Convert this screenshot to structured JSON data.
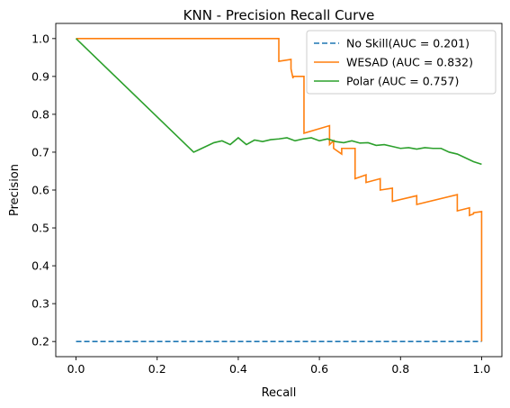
{
  "chart_data": {
    "type": "line",
    "title": "KNN - Precision Recall Curve",
    "xlabel": "Recall",
    "ylabel": "Precision",
    "xlim": [
      -0.05,
      1.05
    ],
    "ylim": [
      0.16,
      1.04
    ],
    "xticks": [
      "0.0",
      "0.2",
      "0.4",
      "0.6",
      "0.8",
      "1.0"
    ],
    "yticks": [
      "0.2",
      "0.3",
      "0.4",
      "0.5",
      "0.6",
      "0.7",
      "0.8",
      "0.9",
      "1.0"
    ],
    "legend_position": "top-right",
    "grid": false,
    "series": [
      {
        "name": "No Skill(AUC = 0.201)",
        "color": "#1f77b4",
        "dashed": true,
        "x": [
          0.0,
          1.0
        ],
        "y": [
          0.2,
          0.2
        ]
      },
      {
        "name": "WESAD (AUC = 0.832)",
        "color": "#ff7f0e",
        "dashed": false,
        "x": [
          0.0,
          0.5,
          0.5,
          0.53,
          0.53,
          0.535,
          0.535,
          0.562,
          0.562,
          0.625,
          0.625,
          0.635,
          0.635,
          0.655,
          0.655,
          0.688,
          0.688,
          0.715,
          0.715,
          0.75,
          0.75,
          0.78,
          0.78,
          0.84,
          0.84,
          0.94,
          0.94,
          0.97,
          0.97,
          0.98,
          0.98,
          1.0,
          1.0
        ],
        "y": [
          1.0,
          1.0,
          0.94,
          0.945,
          0.92,
          0.895,
          0.9,
          0.9,
          0.75,
          0.77,
          0.72,
          0.73,
          0.71,
          0.695,
          0.71,
          0.71,
          0.63,
          0.64,
          0.62,
          0.63,
          0.6,
          0.605,
          0.57,
          0.585,
          0.562,
          0.588,
          0.545,
          0.553,
          0.533,
          0.537,
          0.54,
          0.543,
          0.2
        ]
      },
      {
        "name": "Polar (AUC = 0.757)",
        "color": "#2ca02c",
        "dashed": false,
        "x": [
          0.0,
          0.29,
          0.3,
          0.32,
          0.34,
          0.36,
          0.38,
          0.4,
          0.42,
          0.44,
          0.46,
          0.48,
          0.5,
          0.52,
          0.54,
          0.56,
          0.58,
          0.6,
          0.62,
          0.64,
          0.66,
          0.68,
          0.7,
          0.72,
          0.74,
          0.76,
          0.78,
          0.8,
          0.82,
          0.84,
          0.86,
          0.88,
          0.9,
          0.92,
          0.94,
          0.96,
          0.98,
          1.0
        ],
        "y": [
          1.0,
          0.7,
          0.705,
          0.715,
          0.725,
          0.73,
          0.72,
          0.738,
          0.72,
          0.732,
          0.728,
          0.733,
          0.735,
          0.738,
          0.73,
          0.735,
          0.738,
          0.73,
          0.735,
          0.728,
          0.725,
          0.73,
          0.724,
          0.725,
          0.718,
          0.72,
          0.715,
          0.71,
          0.712,
          0.708,
          0.712,
          0.71,
          0.71,
          0.7,
          0.695,
          0.685,
          0.675,
          0.668
        ]
      }
    ]
  }
}
